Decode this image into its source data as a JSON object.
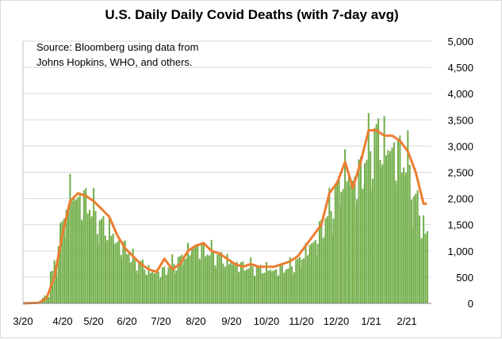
{
  "chart_data": {
    "type": "bar",
    "title": "U.S. Daily Daily Covid Deaths (with 7-day avg)",
    "annotation": [
      "Source:  Bloomberg using data from",
      "Johns Hopkins, WHO, and others."
    ],
    "xlabel": "",
    "ylabel": "",
    "x_tick_labels": [
      "3/20",
      "4/20",
      "5/20",
      "6/20",
      "7/20",
      "8/20",
      "9/20",
      "10/20",
      "11/20",
      "12/20",
      "1/21",
      "2/21"
    ],
    "y_ticks": [
      0,
      500,
      1000,
      1500,
      2000,
      2500,
      3000,
      3500,
      4000,
      4500,
      5000
    ],
    "y_tick_labels": [
      "0",
      "500",
      "1,000",
      "1,500",
      "2,000",
      "2,500",
      "3,000",
      "3,500",
      "4,000",
      "4,500",
      "5,000"
    ],
    "ylim": [
      0,
      5000
    ],
    "x_range": [
      "2020-03-01",
      "2021-02-28"
    ],
    "grid": "horizontal",
    "y_axis_side": "right",
    "series": [
      {
        "kind": "bar",
        "color": "#70ad47",
        "x": [
          "2020-03-15",
          "2020-03-22",
          "2020-03-29",
          "2020-04-05",
          "2020-04-12",
          "2020-04-19",
          "2020-04-26",
          "2020-05-03",
          "2020-05-10",
          "2020-05-17",
          "2020-05-24",
          "2020-05-31",
          "2020-06-07",
          "2020-06-14",
          "2020-06-21",
          "2020-06-28",
          "2020-07-05",
          "2020-07-12",
          "2020-07-19",
          "2020-07-26",
          "2020-08-02",
          "2020-08-09",
          "2020-08-16",
          "2020-08-23",
          "2020-08-30",
          "2020-09-06",
          "2020-09-13",
          "2020-09-20",
          "2020-09-27",
          "2020-10-04",
          "2020-10-11",
          "2020-10-18",
          "2020-10-25",
          "2020-11-01",
          "2020-11-08",
          "2020-11-15",
          "2020-11-22",
          "2020-11-29",
          "2020-12-06",
          "2020-12-13",
          "2020-12-20",
          "2020-12-27",
          "2021-01-03",
          "2021-01-10",
          "2021-01-17",
          "2021-01-24",
          "2021-01-31",
          "2021-02-07",
          "2021-02-14",
          "2021-02-21"
        ],
        "values": [
          15,
          150,
          750,
          1650,
          2350,
          2250,
          2200,
          2000,
          1700,
          1550,
          1300,
          1200,
          950,
          850,
          700,
          650,
          700,
          850,
          950,
          1100,
          1200,
          1150,
          1100,
          1000,
          900,
          850,
          800,
          800,
          750,
          750,
          700,
          750,
          800,
          900,
          1100,
          1300,
          1600,
          2000,
          2450,
          2800,
          2600,
          2800,
          3300,
          3600,
          3400,
          3300,
          3200,
          3000,
          2200,
          1600
        ]
      },
      {
        "kind": "line",
        "name": "7-day avg",
        "color": "#ed7d31",
        "x": [
          "2020-03-01",
          "2020-03-15",
          "2020-03-22",
          "2020-03-29",
          "2020-04-05",
          "2020-04-12",
          "2020-04-19",
          "2020-04-26",
          "2020-05-03",
          "2020-05-10",
          "2020-05-17",
          "2020-05-24",
          "2020-05-31",
          "2020-06-07",
          "2020-06-14",
          "2020-06-21",
          "2020-06-28",
          "2020-07-05",
          "2020-07-12",
          "2020-07-19",
          "2020-07-26",
          "2020-08-02",
          "2020-08-09",
          "2020-08-16",
          "2020-08-23",
          "2020-08-30",
          "2020-09-06",
          "2020-09-13",
          "2020-09-20",
          "2020-09-27",
          "2020-10-04",
          "2020-10-11",
          "2020-10-18",
          "2020-10-25",
          "2020-11-01",
          "2020-11-08",
          "2020-11-15",
          "2020-11-22",
          "2020-11-29",
          "2020-12-06",
          "2020-12-13",
          "2020-12-20",
          "2020-12-27",
          "2021-01-03",
          "2021-01-10",
          "2021-01-17",
          "2021-01-24",
          "2021-01-31",
          "2021-02-07",
          "2021-02-14",
          "2021-02-21",
          "2021-02-24"
        ],
        "values": [
          0,
          10,
          100,
          500,
          1300,
          1950,
          2100,
          2050,
          1950,
          1800,
          1650,
          1300,
          1050,
          900,
          750,
          650,
          600,
          850,
          650,
          750,
          1000,
          1100,
          1150,
          1000,
          950,
          850,
          750,
          700,
          750,
          700,
          700,
          700,
          750,
          800,
          900,
          1100,
          1300,
          1500,
          2100,
          2300,
          2700,
          2200,
          2700,
          3300,
          3300,
          3200,
          3200,
          3100,
          2900,
          2500,
          1900,
          1900
        ]
      }
    ]
  }
}
